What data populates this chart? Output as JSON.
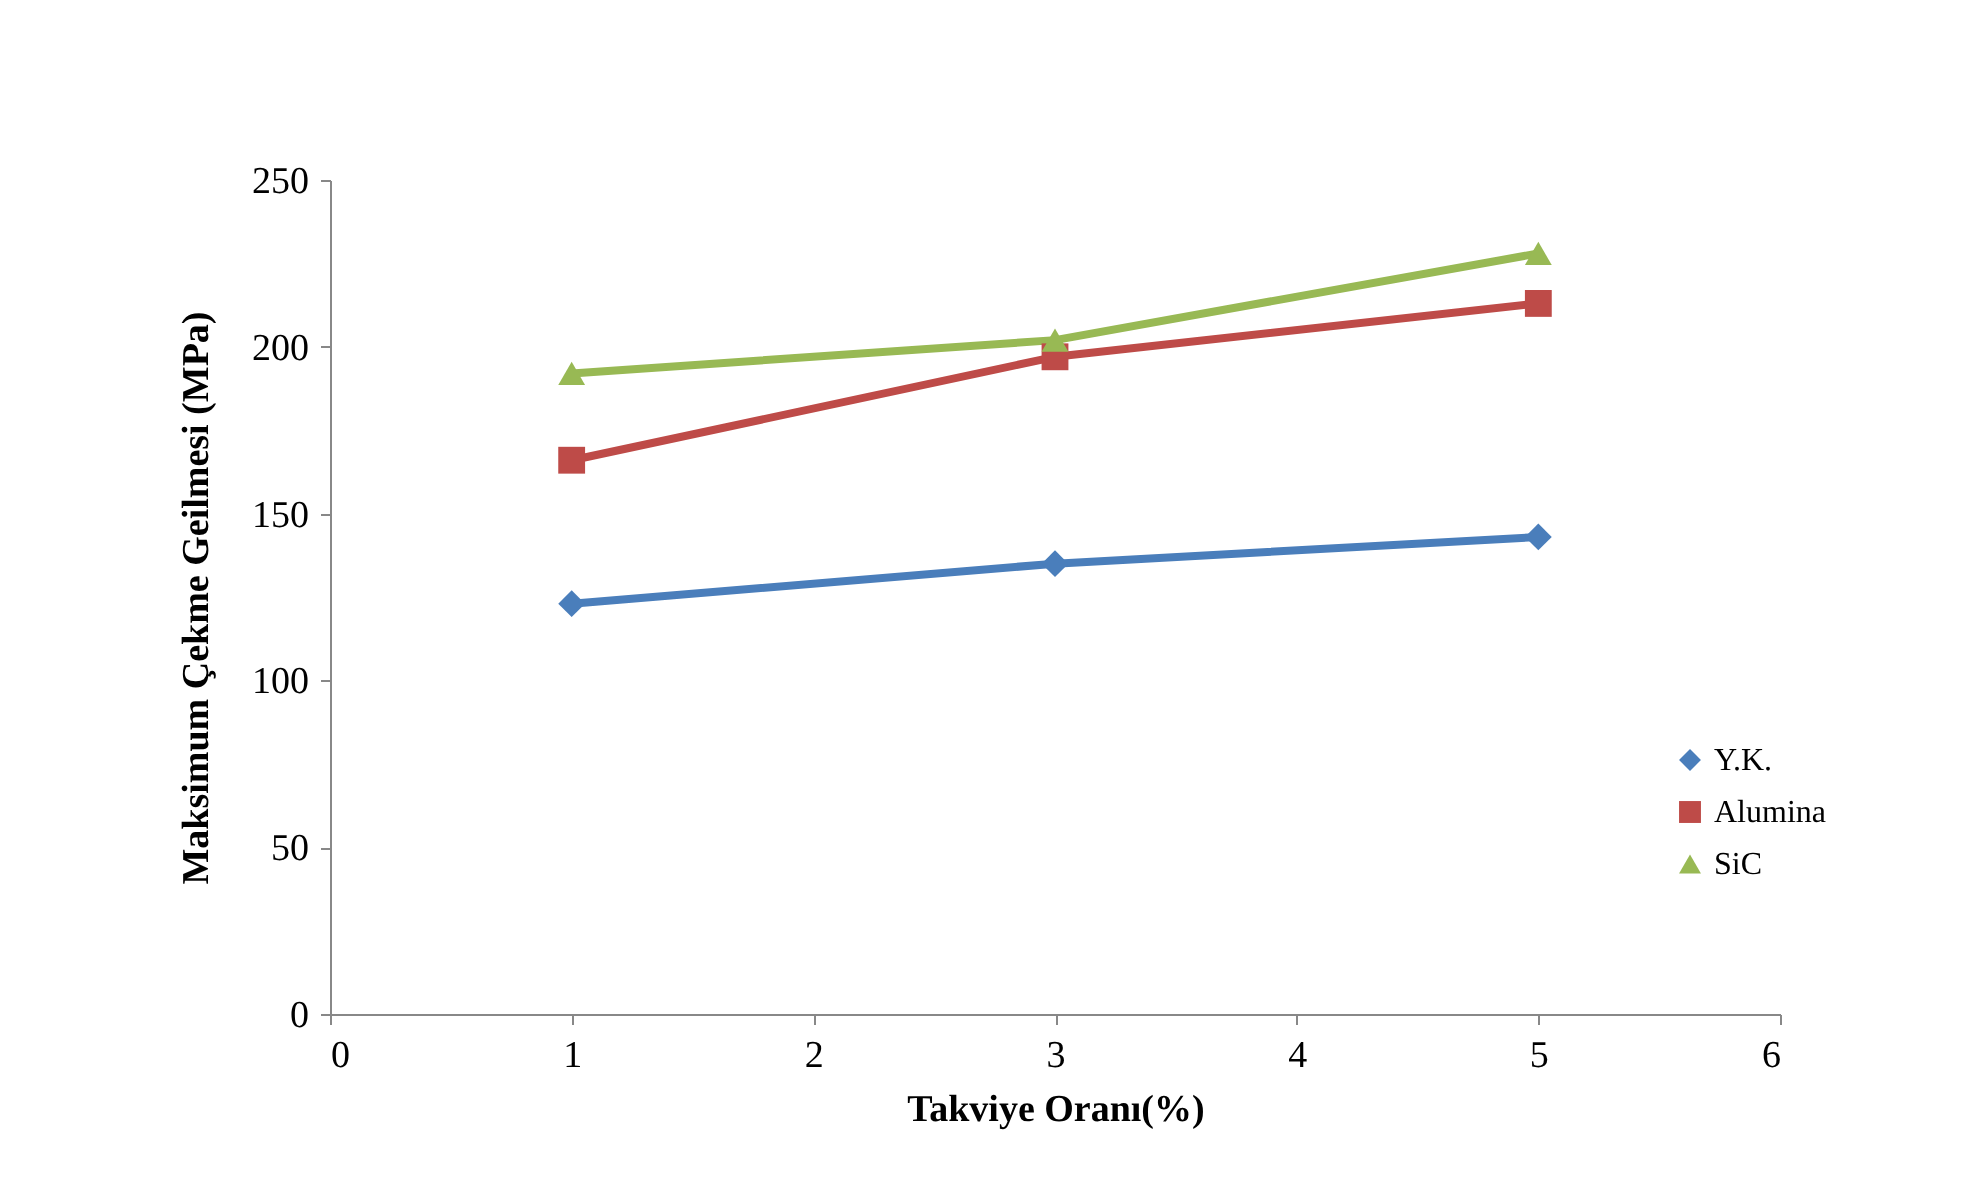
{
  "chart_data": {
    "type": "line",
    "xlabel": "Takviye Oranı(%)",
    "ylabel": "Maksimum Çekme Geilmesi (MPa)",
    "x": [
      1,
      3,
      5
    ],
    "series": [
      {
        "name": "Y.K.",
        "color": "#4a7ebb",
        "marker": "diamond",
        "values": [
          123,
          135,
          143
        ]
      },
      {
        "name": "Alumina",
        "color": "#be4b48",
        "marker": "square",
        "values": [
          166,
          197,
          213
        ]
      },
      {
        "name": "SiC",
        "color": "#98b954",
        "marker": "triangle",
        "values": [
          192,
          202,
          228
        ]
      }
    ],
    "xlim": [
      0,
      6
    ],
    "xticks": [
      0,
      1,
      2,
      3,
      4,
      5,
      6
    ],
    "ylim": [
      0,
      250
    ],
    "yticks": [
      0,
      50,
      100,
      150,
      200,
      250
    ],
    "grid": false,
    "legend": "right",
    "line_style": "solid"
  }
}
